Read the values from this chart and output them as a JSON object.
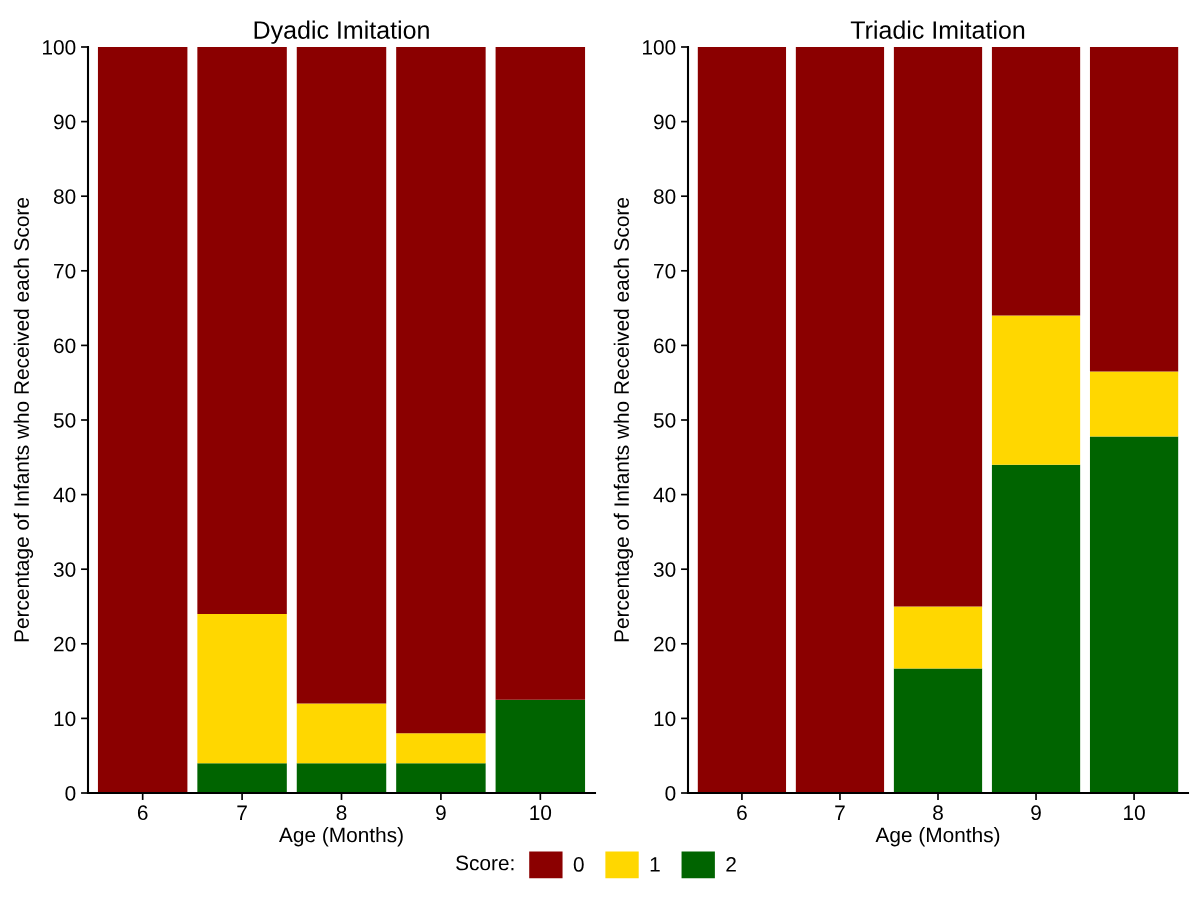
{
  "chart_data": [
    {
      "type": "bar",
      "title": "Dyadic Imitation",
      "xlabel": "Age (Months)",
      "ylabel": "Percentage of Infants who Received each Score",
      "categories": [
        "6",
        "7",
        "8",
        "9",
        "10"
      ],
      "stacked": true,
      "ylim": [
        0,
        100
      ],
      "yticks": [
        0,
        10,
        20,
        30,
        40,
        50,
        60,
        70,
        80,
        90,
        100
      ],
      "legend": "bottom",
      "legend_title": "Score:",
      "series": [
        {
          "name": "2",
          "color": "#006400",
          "values": [
            0,
            4,
            4,
            4,
            12.5
          ]
        },
        {
          "name": "1",
          "color": "#ffd700",
          "values": [
            0,
            20,
            8,
            4,
            0
          ]
        },
        {
          "name": "0",
          "color": "#8b0000",
          "values": [
            100,
            76,
            88,
            92,
            87.5
          ]
        }
      ]
    },
    {
      "type": "bar",
      "title": "Triadic Imitation",
      "xlabel": "Age (Months)",
      "ylabel": "Percentage of Infants who Received each Score",
      "categories": [
        "6",
        "7",
        "8",
        "9",
        "10"
      ],
      "stacked": true,
      "ylim": [
        0,
        100
      ],
      "yticks": [
        0,
        10,
        20,
        30,
        40,
        50,
        60,
        70,
        80,
        90,
        100
      ],
      "series": [
        {
          "name": "2",
          "color": "#006400",
          "values": [
            0,
            0,
            16.7,
            44,
            47.8
          ]
        },
        {
          "name": "1",
          "color": "#ffd700",
          "values": [
            0,
            0,
            8.3,
            20,
            8.7
          ]
        },
        {
          "name": "0",
          "color": "#8b0000",
          "values": [
            100,
            100,
            75,
            36,
            43.5
          ]
        }
      ]
    }
  ]
}
